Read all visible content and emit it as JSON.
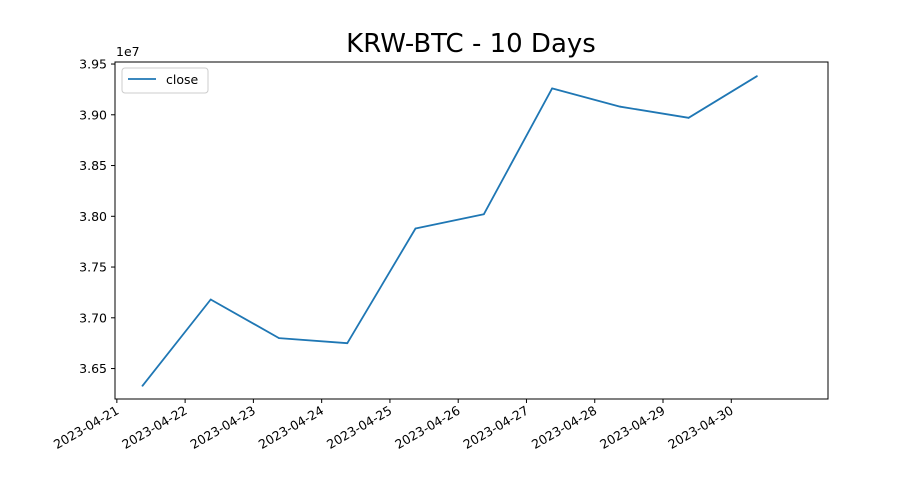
{
  "chart_data": {
    "type": "line",
    "title": "KRW-BTC - 10 Days",
    "xlabel": "",
    "ylabel": "",
    "y_offset_text": "1e7",
    "x_tick_labels": [
      "2023-04-21",
      "2023-04-22",
      "2023-04-23",
      "2023-04-24",
      "2023-04-25",
      "2023-04-26",
      "2023-04-27",
      "2023-04-28",
      "2023-04-29",
      "2023-04-30"
    ],
    "y_tick_labels": [
      "3.65",
      "3.70",
      "3.75",
      "3.80",
      "3.85",
      "3.90",
      "3.95"
    ],
    "y_ticks": [
      36500000,
      37000000,
      37500000,
      38000000,
      38500000,
      39000000,
      39500000
    ],
    "xlim": [
      "2023-04-20T23:21:00",
      "2023-05-01T10:00:00"
    ],
    "ylim": [
      36200000,
      39520000
    ],
    "grid": false,
    "legend": {
      "position": "top-left"
    },
    "series": [
      {
        "name": "close",
        "color": "#1f77b4",
        "x": [
          "2023-04-21T09:00:00",
          "2023-04-22T09:00:00",
          "2023-04-23T09:00:00",
          "2023-04-24T09:00:00",
          "2023-04-25T09:00:00",
          "2023-04-26T09:00:00",
          "2023-04-27T09:00:00",
          "2023-04-28T09:00:00",
          "2023-04-29T09:00:00",
          "2023-04-30T09:00:00"
        ],
        "values": [
          36330000,
          37180000,
          36800000,
          36750000,
          37880000,
          38020000,
          39260000,
          39080000,
          38970000,
          39380000
        ]
      }
    ]
  }
}
